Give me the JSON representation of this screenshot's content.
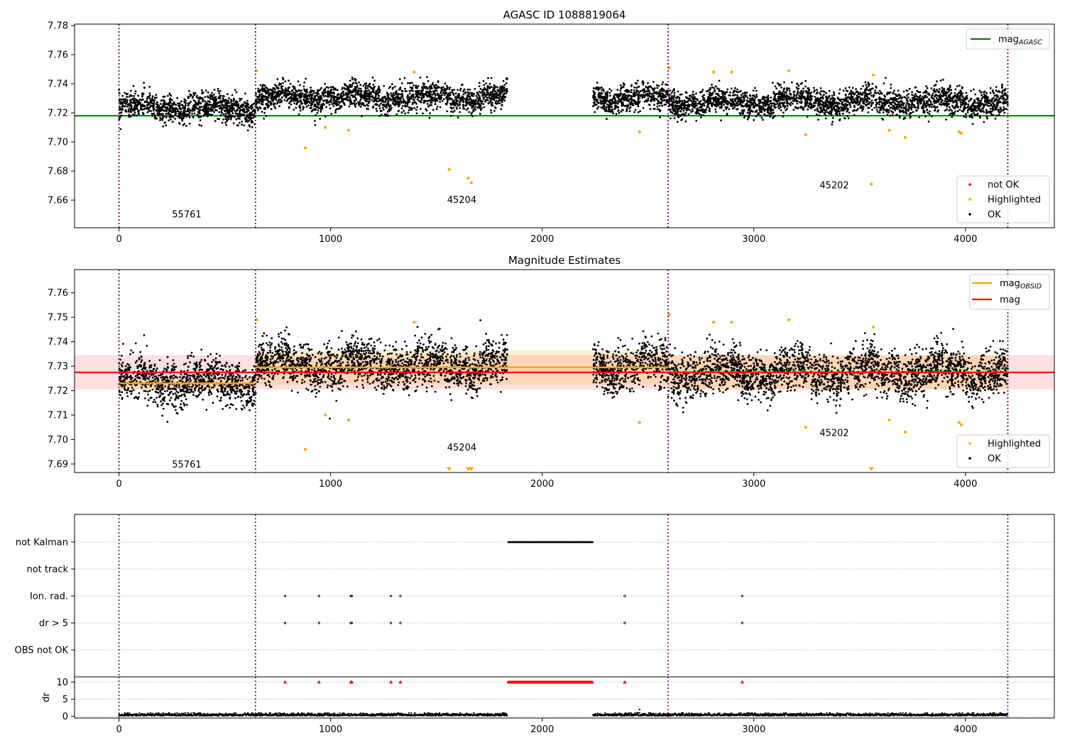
{
  "chart_data": [
    {
      "type": "scatter",
      "title": "AGASC ID 1088819064",
      "xlim": [
        -210,
        4420
      ],
      "ylim": [
        7.641,
        7.781
      ],
      "yticks": [
        "7.66",
        "7.68",
        "7.70",
        "7.72",
        "7.74",
        "7.76",
        "7.78"
      ],
      "xticks": [
        "0",
        "1000",
        "2000",
        "3000",
        "4000"
      ],
      "obsid_boundaries": [
        0,
        645,
        2595,
        4200
      ],
      "obsid_labels": [
        {
          "text": "55761",
          "x": 320,
          "y": 7.648
        },
        {
          "text": "45204",
          "x": 1620,
          "y": 7.658
        },
        {
          "text": "45202",
          "x": 3380,
          "y": 7.668
        }
      ],
      "mag_agasc": 7.718,
      "mag_agasc_range": [
        -210,
        4420
      ],
      "ok_segments": [
        {
          "x_range": [
            0,
            645
          ],
          "mean": 7.7235,
          "spread": 0.0075
        },
        {
          "x_range": [
            645,
            1835
          ],
          "mean": 7.7305,
          "spread": 0.0075
        },
        {
          "x_range": [
            2240,
            2595
          ],
          "mean": 7.73,
          "spread": 0.0075
        },
        {
          "x_range": [
            2595,
            4200
          ],
          "mean": 7.7275,
          "spread": 0.0075
        }
      ],
      "highlighted_points": [
        {
          "x": 650,
          "y": 7.749
        },
        {
          "x": 880,
          "y": 7.696
        },
        {
          "x": 975,
          "y": 7.71
        },
        {
          "x": 1085,
          "y": 7.708
        },
        {
          "x": 1395,
          "y": 7.748
        },
        {
          "x": 1560,
          "y": 7.681
        },
        {
          "x": 1650,
          "y": 7.675
        },
        {
          "x": 1665,
          "y": 7.672
        },
        {
          "x": 2460,
          "y": 7.707
        },
        {
          "x": 2600,
          "y": 7.751
        },
        {
          "x": 2810,
          "y": 7.748
        },
        {
          "x": 2895,
          "y": 7.748
        },
        {
          "x": 3165,
          "y": 7.749
        },
        {
          "x": 3245,
          "y": 7.705
        },
        {
          "x": 3555,
          "y": 7.671
        },
        {
          "x": 3565,
          "y": 7.746
        },
        {
          "x": 3640,
          "y": 7.708
        },
        {
          "x": 3715,
          "y": 7.703
        },
        {
          "x": 3970,
          "y": 7.707
        },
        {
          "x": 3980,
          "y": 7.706
        }
      ],
      "legend_upper": [
        {
          "label": "mag",
          "subscript": "AGASC",
          "color": "#008000"
        }
      ],
      "legend_lower": [
        {
          "label": "not OK",
          "color": "#ff0000"
        },
        {
          "label": "Highlighted",
          "color": "#ffa500"
        },
        {
          "label": "OK",
          "color": "#000000"
        }
      ]
    },
    {
      "type": "scatter",
      "title": "Magnitude Estimates",
      "xlim": [
        -210,
        4420
      ],
      "ylim": [
        7.6865,
        7.7695
      ],
      "yticks": [
        "7.69",
        "7.70",
        "7.71",
        "7.72",
        "7.73",
        "7.74",
        "7.75",
        "7.76"
      ],
      "xticks": [
        "0",
        "1000",
        "2000",
        "3000",
        "4000"
      ],
      "obsid_boundaries": [
        0,
        645,
        2595,
        4200
      ],
      "obsid_labels": [
        {
          "text": "55761",
          "x": 320,
          "y": 7.6885
        },
        {
          "text": "45204",
          "x": 1620,
          "y": 7.6955
        },
        {
          "text": "45202",
          "x": 3380,
          "y": 7.7015
        }
      ],
      "mag": 7.7275,
      "mag_band": [
        7.7205,
        7.7345
      ],
      "mag_range": [
        -210,
        4420
      ],
      "obsid_mags": [
        {
          "x_range": [
            0,
            645
          ],
          "mag": 7.723,
          "band": [
            7.7205,
            7.7255
          ]
        },
        {
          "x_range": [
            645,
            2595
          ],
          "mag": 7.7295,
          "band": [
            7.7225,
            7.7365
          ]
        },
        {
          "x_range": [
            2595,
            4200
          ],
          "mag": 7.7275,
          "band": [
            7.7205,
            7.7345
          ]
        }
      ],
      "highlighted_points": [
        {
          "x": 650,
          "y": 7.749
        },
        {
          "x": 880,
          "y": 7.696
        },
        {
          "x": 975,
          "y": 7.71
        },
        {
          "x": 1085,
          "y": 7.708
        },
        {
          "x": 1395,
          "y": 7.748
        },
        {
          "x": 2460,
          "y": 7.707
        },
        {
          "x": 2600,
          "y": 7.751
        },
        {
          "x": 2810,
          "y": 7.748
        },
        {
          "x": 2895,
          "y": 7.748
        },
        {
          "x": 3165,
          "y": 7.749
        },
        {
          "x": 3245,
          "y": 7.705
        },
        {
          "x": 3565,
          "y": 7.746
        },
        {
          "x": 3640,
          "y": 7.708
        },
        {
          "x": 3715,
          "y": 7.703
        },
        {
          "x": 3970,
          "y": 7.707
        },
        {
          "x": 3980,
          "y": 7.706
        }
      ],
      "below_range_markers": [
        {
          "x": 1560
        },
        {
          "x": 1650
        },
        {
          "x": 1665
        },
        {
          "x": 3555
        }
      ],
      "legend_upper": [
        {
          "label": "mag",
          "subscript": "OBSID",
          "color": "#ffa500"
        },
        {
          "label": "mag",
          "subscript": "",
          "color": "#ff0000"
        }
      ],
      "legend_lower": [
        {
          "label": "Highlighted",
          "color": "#ffa500"
        },
        {
          "label": "OK",
          "color": "#000000"
        }
      ]
    },
    {
      "type": "scatter",
      "title": "",
      "xlim": [
        -210,
        4420
      ],
      "flag_categories": [
        "not Kalman",
        "not track",
        "Ion. rad.",
        "dr > 5",
        "OBS not OK"
      ],
      "obsid_boundaries": [
        0,
        645,
        2595,
        4200
      ],
      "not_kalman_range": [
        1840,
        2240
      ],
      "ion_rad_x": [
        785,
        945,
        1095,
        1100,
        1285,
        1330,
        2390,
        2945
      ],
      "dr_gt5_x": [
        785,
        945,
        1095,
        1100,
        1285,
        1330,
        2390,
        2945
      ],
      "dr": {
        "ylabel": "dr",
        "yticks": [
          "0",
          "5",
          "10"
        ],
        "ylim": [
          -0.5,
          11.5
        ],
        "clipped_value": 10,
        "clipped_isolated_x": [
          785,
          945,
          1095,
          1100,
          1285,
          1330,
          2390,
          2945
        ],
        "clipped_range": [
          1840,
          2240
        ],
        "outlier": {
          "x": 2460,
          "y": 2.0
        },
        "gap_range": [
          1835,
          2240
        ],
        "x_extent": [
          0,
          4200
        ],
        "typical_range": [
          0.1,
          1.0
        ]
      },
      "xticks": [
        "0",
        "1000",
        "2000",
        "3000",
        "4000"
      ]
    }
  ]
}
